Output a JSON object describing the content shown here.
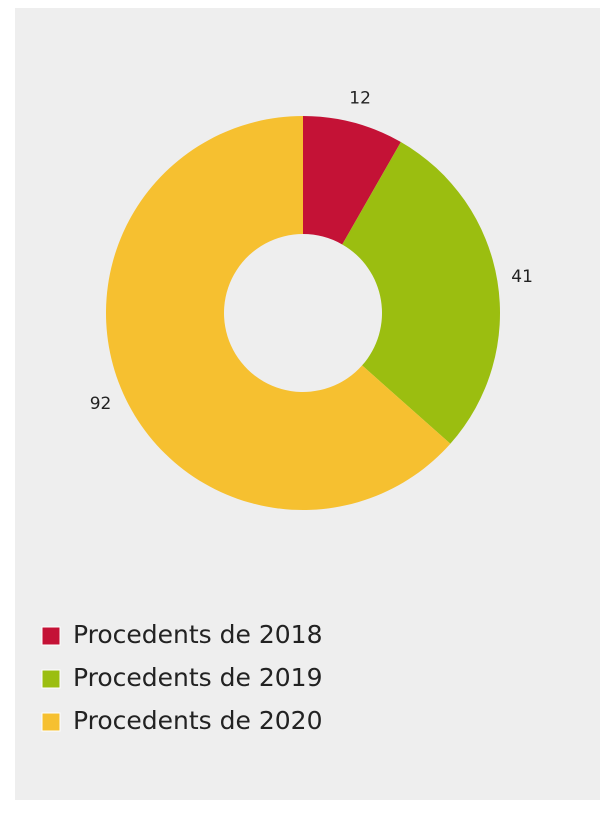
{
  "chart_data": {
    "type": "pie",
    "categories": [
      "Procedents de 2018",
      "Procedents de 2019",
      "Procedents de 2020"
    ],
    "values": [
      12,
      41,
      92
    ],
    "colors": [
      "#c41236",
      "#9bbe10",
      "#f6c030"
    ],
    "donut": true
  }
}
